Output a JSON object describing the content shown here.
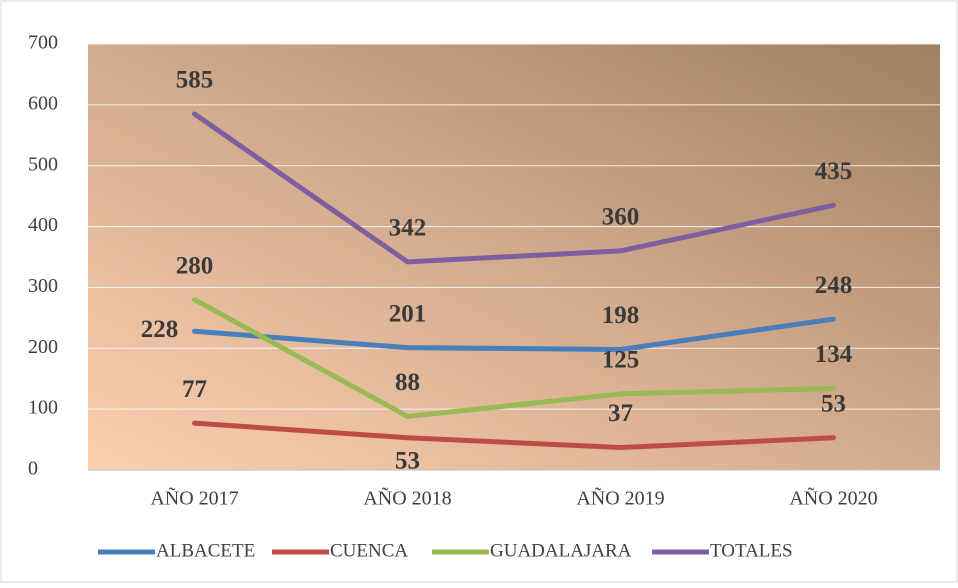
{
  "chart_data": {
    "type": "line",
    "categories": [
      "AÑO 2017",
      "AÑO 2018",
      "AÑO 2019",
      "AÑO 2020"
    ],
    "series": [
      {
        "name": "ALBACETE",
        "color": "#4a7ebb",
        "values": [
          228,
          201,
          198,
          248
        ]
      },
      {
        "name": "CUENCA",
        "color": "#be4b48",
        "values": [
          77,
          53,
          37,
          53
        ]
      },
      {
        "name": "GUADALAJARA",
        "color": "#98b954",
        "values": [
          280,
          88,
          125,
          134
        ]
      },
      {
        "name": "TOTALES",
        "color": "#7d5fa0",
        "values": [
          585,
          342,
          360,
          435
        ]
      }
    ],
    "ylim": [
      0,
      700
    ],
    "yticks": [
      0,
      100,
      200,
      300,
      400,
      500,
      600,
      700
    ],
    "grid": true,
    "legend": "bottom"
  }
}
